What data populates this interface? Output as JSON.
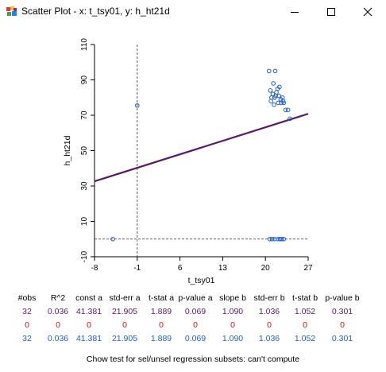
{
  "window": {
    "title": "Scatter Plot - x: t_tsy01, y: h_ht21d",
    "minimize_icon": "minimize-icon",
    "maximize_icon": "maximize-icon",
    "close_icon": "close-icon"
  },
  "chart_data": {
    "type": "scatter",
    "xlabel": "t_tsy01",
    "ylabel": "h_ht21d",
    "xlim": [
      -8,
      27
    ],
    "ylim": [
      -10,
      110
    ],
    "x_ticks": [
      -8,
      -1,
      6,
      13,
      20,
      27
    ],
    "y_ticks": [
      -10,
      10,
      30,
      50,
      70,
      90,
      110
    ],
    "grid": false,
    "points": [
      {
        "x": -1,
        "y": 75.5
      },
      {
        "x": -5,
        "y": 0
      },
      {
        "x": 20.7,
        "y": 0
      },
      {
        "x": 21.1,
        "y": 0
      },
      {
        "x": 21.5,
        "y": 0
      },
      {
        "x": 22.1,
        "y": 0
      },
      {
        "x": 22.4,
        "y": 0
      },
      {
        "x": 22.7,
        "y": 0
      },
      {
        "x": 23.0,
        "y": 0
      },
      {
        "x": 20.6,
        "y": 95
      },
      {
        "x": 21.6,
        "y": 95
      },
      {
        "x": 21.3,
        "y": 88
      },
      {
        "x": 20.8,
        "y": 84
      },
      {
        "x": 21.2,
        "y": 82
      },
      {
        "x": 21.5,
        "y": 80
      },
      {
        "x": 20.9,
        "y": 78
      },
      {
        "x": 21.8,
        "y": 83
      },
      {
        "x": 22.0,
        "y": 85
      },
      {
        "x": 22.2,
        "y": 81
      },
      {
        "x": 22.5,
        "y": 79
      },
      {
        "x": 22.6,
        "y": 77
      },
      {
        "x": 22.3,
        "y": 86
      },
      {
        "x": 22.9,
        "y": 78
      },
      {
        "x": 23.3,
        "y": 73
      },
      {
        "x": 23.7,
        "y": 73
      },
      {
        "x": 21.4,
        "y": 76
      },
      {
        "x": 22.8,
        "y": 80
      },
      {
        "x": 24.0,
        "y": 68
      },
      {
        "x": 21.0,
        "y": 80
      },
      {
        "x": 22.1,
        "y": 77
      },
      {
        "x": 21.7,
        "y": 81
      },
      {
        "x": 23.0,
        "y": 77
      }
    ],
    "regression": {
      "intercept": 41.381,
      "slope": 1.09
    },
    "ref_lines": {
      "x": -1,
      "y": 0
    },
    "colors": {
      "points": "#1f5ec8",
      "line": "#5a1a66",
      "ref": "#333333"
    }
  },
  "stats": {
    "headers": [
      "#obs",
      "R^2",
      "const a",
      "std-err a",
      "t-stat a",
      "p-value a",
      "slope b",
      "std-err b",
      "t-stat b",
      "p-value b"
    ],
    "rows": {
      "all": [
        "32",
        "0.036",
        "41.381",
        "21.905",
        "1.889",
        "0.069",
        "1.090",
        "1.036",
        "1.052",
        "0.301"
      ],
      "sel": [
        "0",
        "0",
        "0",
        "0",
        "0",
        "0",
        "0",
        "0",
        "0",
        "0"
      ],
      "unsel": [
        "32",
        "0.036",
        "41.381",
        "21.905",
        "1.889",
        "0.069",
        "1.090",
        "1.036",
        "1.052",
        "0.301"
      ]
    },
    "chow": "Chow test for sel/unsel regression subsets: can't compute"
  }
}
